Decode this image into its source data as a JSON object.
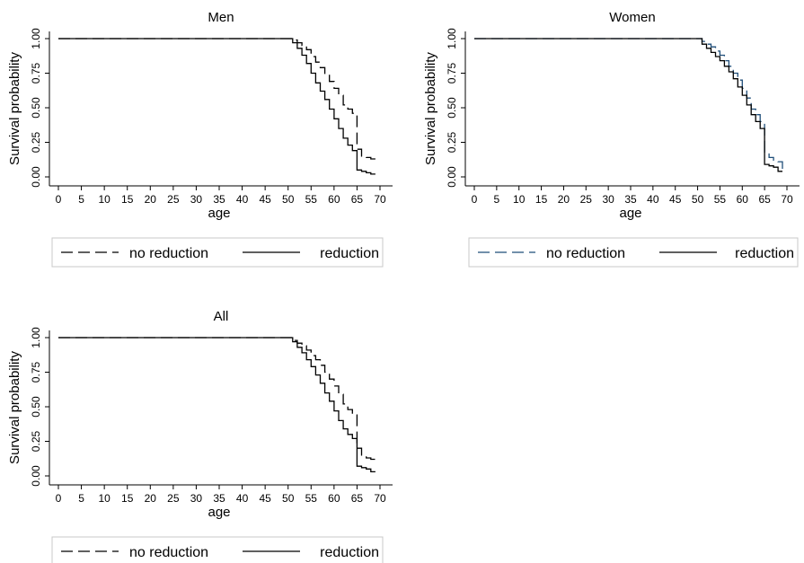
{
  "chart_data": [
    {
      "type": "line",
      "title": "Men",
      "xlabel": "age",
      "ylabel": "Survival probability",
      "xlim": [
        0,
        70
      ],
      "ylim": [
        0,
        1
      ],
      "xticks": [
        "0",
        "5",
        "10",
        "15",
        "20",
        "25",
        "30",
        "35",
        "40",
        "45",
        "50",
        "55",
        "60",
        "65",
        "70"
      ],
      "yticks": [
        "0.00",
        "0.25",
        "0.50",
        "0.75",
        "1.00"
      ],
      "grid": false,
      "legend_position": "bottom",
      "series": [
        {
          "name": "no reduction",
          "color": "#000000",
          "dash": "dashed",
          "x": [
            0,
            50,
            51,
            52,
            53,
            54,
            55,
            56,
            57,
            58,
            59,
            60,
            61,
            62,
            63,
            64,
            65,
            66,
            67,
            68,
            69
          ],
          "y": [
            1.0,
            1.0,
            0.99,
            0.97,
            0.95,
            0.92,
            0.87,
            0.83,
            0.79,
            0.74,
            0.69,
            0.64,
            0.59,
            0.52,
            0.49,
            0.46,
            0.2,
            0.15,
            0.14,
            0.13,
            0.13
          ]
        },
        {
          "name": "reduction",
          "color": "#000000",
          "dash": "solid",
          "x": [
            0,
            50,
            51,
            52,
            53,
            54,
            55,
            56,
            57,
            58,
            59,
            60,
            61,
            62,
            63,
            64,
            65,
            66,
            67,
            68,
            69
          ],
          "y": [
            1.0,
            1.0,
            0.97,
            0.93,
            0.88,
            0.82,
            0.75,
            0.68,
            0.62,
            0.56,
            0.49,
            0.42,
            0.35,
            0.28,
            0.23,
            0.19,
            0.05,
            0.04,
            0.03,
            0.02,
            0.02
          ]
        }
      ]
    },
    {
      "type": "line",
      "title": "Women",
      "xlabel": "age",
      "ylabel": "Survival probability",
      "xlim": [
        0,
        70
      ],
      "ylim": [
        0,
        1
      ],
      "xticks": [
        "0",
        "5",
        "10",
        "15",
        "20",
        "25",
        "30",
        "35",
        "40",
        "45",
        "50",
        "55",
        "60",
        "65",
        "70"
      ],
      "yticks": [
        "0.00",
        "0.25",
        "0.50",
        "0.75",
        "1.00"
      ],
      "grid": false,
      "legend_position": "bottom",
      "series": [
        {
          "name": "no reduction",
          "color": "#1f4e79",
          "dash": "dashed",
          "x": [
            0,
            50,
            51,
            52,
            53,
            54,
            55,
            56,
            57,
            58,
            59,
            60,
            61,
            62,
            63,
            64,
            65,
            66,
            67,
            68,
            69
          ],
          "y": [
            1.0,
            1.0,
            0.98,
            0.96,
            0.94,
            0.91,
            0.88,
            0.84,
            0.8,
            0.75,
            0.7,
            0.64,
            0.57,
            0.49,
            0.45,
            0.4,
            0.18,
            0.14,
            0.12,
            0.11,
            0.05
          ]
        },
        {
          "name": "reduction",
          "color": "#000000",
          "dash": "solid",
          "x": [
            0,
            50,
            51,
            52,
            53,
            54,
            55,
            56,
            57,
            58,
            59,
            60,
            61,
            62,
            63,
            64,
            65,
            66,
            67,
            68,
            69
          ],
          "y": [
            1.0,
            1.0,
            0.96,
            0.93,
            0.9,
            0.87,
            0.84,
            0.8,
            0.76,
            0.71,
            0.65,
            0.59,
            0.52,
            0.45,
            0.4,
            0.35,
            0.09,
            0.08,
            0.07,
            0.04,
            0.04
          ]
        }
      ]
    },
    {
      "type": "line",
      "title": "All",
      "xlabel": "age",
      "ylabel": "Survival probability",
      "xlim": [
        0,
        70
      ],
      "ylim": [
        0,
        1
      ],
      "xticks": [
        "0",
        "5",
        "10",
        "15",
        "20",
        "25",
        "30",
        "35",
        "40",
        "45",
        "50",
        "55",
        "60",
        "65",
        "70"
      ],
      "yticks": [
        "0.00",
        "0.25",
        "0.50",
        "0.75",
        "1.00"
      ],
      "grid": false,
      "legend_position": "bottom",
      "series": [
        {
          "name": "no reduction",
          "color": "#000000",
          "dash": "dashed",
          "x": [
            0,
            50,
            51,
            52,
            53,
            54,
            55,
            56,
            57,
            58,
            59,
            60,
            61,
            62,
            63,
            64,
            65,
            66,
            67,
            68,
            69
          ],
          "y": [
            1.0,
            1.0,
            0.98,
            0.96,
            0.94,
            0.91,
            0.87,
            0.84,
            0.8,
            0.75,
            0.7,
            0.65,
            0.59,
            0.52,
            0.48,
            0.44,
            0.2,
            0.15,
            0.13,
            0.12,
            0.11
          ]
        },
        {
          "name": "reduction",
          "color": "#000000",
          "dash": "solid",
          "x": [
            0,
            50,
            51,
            52,
            53,
            54,
            55,
            56,
            57,
            58,
            59,
            60,
            61,
            62,
            63,
            64,
            65,
            66,
            67,
            68,
            69
          ],
          "y": [
            1.0,
            1.0,
            0.97,
            0.93,
            0.89,
            0.84,
            0.79,
            0.73,
            0.67,
            0.6,
            0.54,
            0.47,
            0.4,
            0.34,
            0.3,
            0.27,
            0.07,
            0.06,
            0.05,
            0.03,
            0.03
          ]
        }
      ]
    }
  ]
}
